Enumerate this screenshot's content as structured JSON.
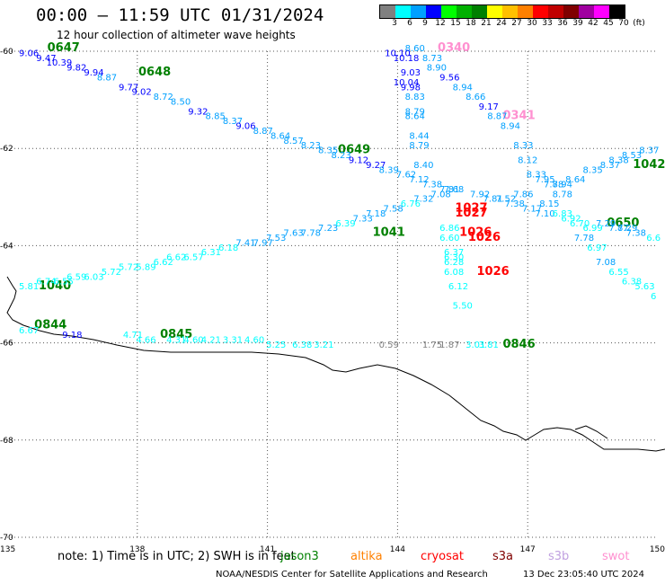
{
  "title": "00:00 – 11:59 UTC 01/31/2024",
  "subtitle": "12 hour collection of altimeter wave heights",
  "colorbar": {
    "labels": [
      "3",
      "6",
      "9",
      "12",
      "15",
      "18",
      "21",
      "24",
      "27",
      "30",
      "33",
      "36",
      "39",
      "42",
      "45",
      "70",
      "(ft)"
    ],
    "colors": [
      "#808080",
      "#00ffff",
      "#00a0ff",
      "#0000ff",
      "#00ff00",
      "#00b000",
      "#008000",
      "#ffff00",
      "#ffc000",
      "#ff8000",
      "#ff0000",
      "#c00000",
      "#800000",
      "#a000a0",
      "#ff00ff",
      "#000000"
    ]
  },
  "note": "note: 1) Time is in UTC; 2) SWH is in feet",
  "missions": [
    {
      "name": "jason3",
      "color": "#008000"
    },
    {
      "name": "altika",
      "color": "#ff8000"
    },
    {
      "name": "cryosat",
      "color": "#ff0000"
    },
    {
      "name": "s3a",
      "color": "#800000"
    },
    {
      "name": "s3b",
      "color": "#c0a0e0"
    },
    {
      "name": "swot",
      "color": "#ff90d0"
    }
  ],
  "credit": "NOAA/NESDIS Center for Satellite Applications and Research",
  "timestamp": "13 Dec 23:05:40 UTC 2024",
  "chart_data": {
    "type": "scatter",
    "xlim": [
      135,
      150
    ],
    "ylim": [
      -70,
      -60
    ],
    "x_ticks": [
      "135",
      "138",
      "141",
      "144",
      "147",
      "150"
    ],
    "y_ticks": [
      "-60",
      "-62",
      "-64",
      "-66",
      "-68",
      "-70"
    ],
    "grid": true,
    "points": [
      {
        "x": 135.5,
        "y": -60.1,
        "v": "9.06",
        "c": "#0000ff"
      },
      {
        "x": 135.9,
        "y": -60.2,
        "v": "9.47",
        "c": "#0000ff"
      },
      {
        "x": 136.2,
        "y": -60.3,
        "v": "10.39",
        "c": "#0000ff"
      },
      {
        "x": 136.6,
        "y": -60.4,
        "v": "9.82",
        "c": "#0000ff"
      },
      {
        "x": 137.0,
        "y": -60.5,
        "v": "9.94",
        "c": "#0000ff"
      },
      {
        "x": 137.3,
        "y": -60.6,
        "v": "8.87",
        "c": "#00a0ff"
      },
      {
        "x": 137.8,
        "y": -60.8,
        "v": "9.77",
        "c": "#0000ff"
      },
      {
        "x": 138.1,
        "y": -60.9,
        "v": "9.02",
        "c": "#0000ff"
      },
      {
        "x": 138.6,
        "y": -61.0,
        "v": "8.72",
        "c": "#00a0ff"
      },
      {
        "x": 139.0,
        "y": -61.1,
        "v": "8.50",
        "c": "#00a0ff"
      },
      {
        "x": 139.4,
        "y": -61.3,
        "v": "9.32",
        "c": "#0000ff"
      },
      {
        "x": 139.8,
        "y": -61.4,
        "v": "8.85",
        "c": "#00a0ff"
      },
      {
        "x": 140.2,
        "y": -61.5,
        "v": "8.37",
        "c": "#00a0ff"
      },
      {
        "x": 140.5,
        "y": -61.6,
        "v": "9.06",
        "c": "#0000ff"
      },
      {
        "x": 140.9,
        "y": -61.7,
        "v": "8.87",
        "c": "#00a0ff"
      },
      {
        "x": 141.3,
        "y": -61.8,
        "v": "8.64",
        "c": "#00a0ff"
      },
      {
        "x": 141.6,
        "y": -61.9,
        "v": "8.57",
        "c": "#00a0ff"
      },
      {
        "x": 142.0,
        "y": -62.0,
        "v": "8.23",
        "c": "#00a0ff"
      },
      {
        "x": 142.4,
        "y": -62.1,
        "v": "8.35",
        "c": "#00a0ff"
      },
      {
        "x": 142.7,
        "y": -62.2,
        "v": "8.23",
        "c": "#00a0ff"
      },
      {
        "x": 143.1,
        "y": -62.3,
        "v": "9.12",
        "c": "#0000ff"
      },
      {
        "x": 143.5,
        "y": -62.4,
        "v": "9.27",
        "c": "#0000ff"
      },
      {
        "x": 143.8,
        "y": -62.5,
        "v": "8.39",
        "c": "#00a0ff"
      },
      {
        "x": 144.2,
        "y": -62.6,
        "v": "7.62",
        "c": "#00a0ff"
      },
      {
        "x": 144.5,
        "y": -62.7,
        "v": "7.12",
        "c": "#00a0ff"
      },
      {
        "x": 144.8,
        "y": -62.8,
        "v": "7.38",
        "c": "#00a0ff"
      },
      {
        "x": 145.2,
        "y": -62.9,
        "v": "7.81",
        "c": "#00a0ff"
      },
      {
        "x": 135.5,
        "y": -64.9,
        "v": "5.81",
        "c": "#00ffff"
      },
      {
        "x": 135.9,
        "y": -64.8,
        "v": "6.74",
        "c": "#00ffff"
      },
      {
        "x": 136.3,
        "y": -64.8,
        "v": "6.55",
        "c": "#00ffff"
      },
      {
        "x": 136.6,
        "y": -64.7,
        "v": "6.59",
        "c": "#00ffff"
      },
      {
        "x": 137.0,
        "y": -64.7,
        "v": "6.03",
        "c": "#00ffff"
      },
      {
        "x": 137.4,
        "y": -64.6,
        "v": "5.72",
        "c": "#00ffff"
      },
      {
        "x": 137.8,
        "y": -64.5,
        "v": "5.72",
        "c": "#00ffff"
      },
      {
        "x": 138.2,
        "y": -64.5,
        "v": "5.89",
        "c": "#00ffff"
      },
      {
        "x": 138.6,
        "y": -64.4,
        "v": "6.62",
        "c": "#00ffff"
      },
      {
        "x": 138.9,
        "y": -64.3,
        "v": "6.62",
        "c": "#00ffff"
      },
      {
        "x": 139.3,
        "y": -64.3,
        "v": "6.57",
        "c": "#00ffff"
      },
      {
        "x": 139.7,
        "y": -64.2,
        "v": "6.31",
        "c": "#00ffff"
      },
      {
        "x": 140.1,
        "y": -64.1,
        "v": "6.18",
        "c": "#00ffff"
      },
      {
        "x": 140.5,
        "y": -64.0,
        "v": "7.41",
        "c": "#00a0ff"
      },
      {
        "x": 140.9,
        "y": -64.0,
        "v": "7.97",
        "c": "#00a0ff"
      },
      {
        "x": 141.2,
        "y": -63.9,
        "v": "7.53",
        "c": "#00a0ff"
      },
      {
        "x": 141.6,
        "y": -63.8,
        "v": "7.63",
        "c": "#00a0ff"
      },
      {
        "x": 142.0,
        "y": -63.8,
        "v": "7.78",
        "c": "#00a0ff"
      },
      {
        "x": 142.4,
        "y": -63.7,
        "v": "7.23",
        "c": "#00a0ff"
      },
      {
        "x": 142.8,
        "y": -63.6,
        "v": "6.39",
        "c": "#00ffff"
      },
      {
        "x": 143.2,
        "y": -63.5,
        "v": "7.33",
        "c": "#00a0ff"
      },
      {
        "x": 143.5,
        "y": -63.4,
        "v": "7.18",
        "c": "#00a0ff"
      },
      {
        "x": 143.9,
        "y": -63.3,
        "v": "7.58",
        "c": "#00a0ff"
      },
      {
        "x": 144.3,
        "y": -63.2,
        "v": "6.76",
        "c": "#00ffff"
      },
      {
        "x": 144.6,
        "y": -63.1,
        "v": "7.32",
        "c": "#00a0ff"
      },
      {
        "x": 145.0,
        "y": -63.0,
        "v": "7.08",
        "c": "#00a0ff"
      },
      {
        "x": 145.3,
        "y": -62.9,
        "v": "7.68",
        "c": "#00a0ff"
      },
      {
        "x": 135.5,
        "y": -65.8,
        "v": "6.67",
        "c": "#00ffff"
      },
      {
        "x": 136.5,
        "y": -65.9,
        "v": "9.18",
        "c": "#0000ff"
      },
      {
        "x": 137.9,
        "y": -65.9,
        "v": "4.71",
        "c": "#00ffff"
      },
      {
        "x": 138.2,
        "y": -66.0,
        "v": "4.66",
        "c": "#00ffff"
      },
      {
        "x": 138.9,
        "y": -66.0,
        "v": "4.31",
        "c": "#00ffff"
      },
      {
        "x": 139.3,
        "y": -66.0,
        "v": "4.60",
        "c": "#00ffff"
      },
      {
        "x": 139.7,
        "y": -66.0,
        "v": "4.21",
        "c": "#00ffff"
      },
      {
        "x": 140.2,
        "y": -66.0,
        "v": "3.31",
        "c": "#00ffff"
      },
      {
        "x": 140.7,
        "y": -66.0,
        "v": "4.60",
        "c": "#00ffff"
      },
      {
        "x": 141.2,
        "y": -66.1,
        "v": "5.25",
        "c": "#00ffff"
      },
      {
        "x": 141.8,
        "y": -66.1,
        "v": "6.38",
        "c": "#00ffff"
      },
      {
        "x": 142.3,
        "y": -66.1,
        "v": "3.21",
        "c": "#00ffff"
      },
      {
        "x": 143.8,
        "y": -66.1,
        "v": "0.59",
        "c": "#808080"
      },
      {
        "x": 144.8,
        "y": -66.1,
        "v": "1.75",
        "c": "#808080"
      },
      {
        "x": 145.2,
        "y": -66.1,
        "v": "1.87",
        "c": "#808080"
      },
      {
        "x": 145.8,
        "y": -66.1,
        "v": "3.01",
        "c": "#00ffff"
      },
      {
        "x": 146.1,
        "y": -66.1,
        "v": "3.81",
        "c": "#00ffff"
      },
      {
        "x": 144.4,
        "y": -60.0,
        "v": "8.60",
        "c": "#00a0ff"
      },
      {
        "x": 144.0,
        "y": -60.1,
        "v": "10.10",
        "c": "#0000ff"
      },
      {
        "x": 144.2,
        "y": -60.2,
        "v": "10.18",
        "c": "#0000ff"
      },
      {
        "x": 144.8,
        "y": -60.2,
        "v": "8.73",
        "c": "#00a0ff"
      },
      {
        "x": 144.9,
        "y": -60.4,
        "v": "8.90",
        "c": "#00a0ff"
      },
      {
        "x": 144.3,
        "y": -60.5,
        "v": "9.03",
        "c": "#0000ff"
      },
      {
        "x": 145.2,
        "y": -60.6,
        "v": "9.56",
        "c": "#0000ff"
      },
      {
        "x": 144.2,
        "y": -60.7,
        "v": "10.04",
        "c": "#0000ff"
      },
      {
        "x": 144.3,
        "y": -60.8,
        "v": "9.98",
        "c": "#0000ff"
      },
      {
        "x": 145.5,
        "y": -60.8,
        "v": "8.94",
        "c": "#00a0ff"
      },
      {
        "x": 144.4,
        "y": -61.0,
        "v": "8.83",
        "c": "#00a0ff"
      },
      {
        "x": 145.8,
        "y": -61.0,
        "v": "8.66",
        "c": "#00a0ff"
      },
      {
        "x": 146.1,
        "y": -61.2,
        "v": "9.17",
        "c": "#0000ff"
      },
      {
        "x": 144.4,
        "y": -61.3,
        "v": "8.79",
        "c": "#00a0ff"
      },
      {
        "x": 144.4,
        "y": -61.4,
        "v": "8.64",
        "c": "#00a0ff"
      },
      {
        "x": 146.3,
        "y": -61.4,
        "v": "8.87",
        "c": "#00a0ff"
      },
      {
        "x": 146.6,
        "y": -61.6,
        "v": "8.94",
        "c": "#00a0ff"
      },
      {
        "x": 144.5,
        "y": -61.8,
        "v": "8.44",
        "c": "#00a0ff"
      },
      {
        "x": 144.5,
        "y": -62.0,
        "v": "8.79",
        "c": "#00a0ff"
      },
      {
        "x": 146.9,
        "y": -62.0,
        "v": "8.33",
        "c": "#00a0ff"
      },
      {
        "x": 147.0,
        "y": -62.3,
        "v": "8.12",
        "c": "#00a0ff"
      },
      {
        "x": 144.6,
        "y": -62.4,
        "v": "8.40",
        "c": "#00a0ff"
      },
      {
        "x": 147.2,
        "y": -62.6,
        "v": "8.33",
        "c": "#00a0ff"
      },
      {
        "x": 147.4,
        "y": -62.7,
        "v": "7.95",
        "c": "#00a0ff"
      },
      {
        "x": 147.6,
        "y": -62.8,
        "v": "7.88",
        "c": "#00a0ff"
      },
      {
        "x": 147.8,
        "y": -62.8,
        "v": "7.94",
        "c": "#00a0ff"
      },
      {
        "x": 148.1,
        "y": -62.7,
        "v": "8.64",
        "c": "#00a0ff"
      },
      {
        "x": 148.5,
        "y": -62.5,
        "v": "8.35",
        "c": "#00a0ff"
      },
      {
        "x": 148.9,
        "y": -62.4,
        "v": "8.37",
        "c": "#00a0ff"
      },
      {
        "x": 149.1,
        "y": -62.3,
        "v": "8.38",
        "c": "#00a0ff"
      },
      {
        "x": 149.4,
        "y": -62.2,
        "v": "8.53",
        "c": "#00a0ff"
      },
      {
        "x": 149.8,
        "y": -62.1,
        "v": "8.37",
        "c": "#00a0ff"
      },
      {
        "x": 145.9,
        "y": -63.0,
        "v": "7.92",
        "c": "#00a0ff"
      },
      {
        "x": 146.2,
        "y": -63.1,
        "v": "7.81",
        "c": "#00a0ff"
      },
      {
        "x": 146.5,
        "y": -63.1,
        "v": "7.52",
        "c": "#00a0ff"
      },
      {
        "x": 146.7,
        "y": -63.2,
        "v": "7.38",
        "c": "#00a0ff"
      },
      {
        "x": 146.9,
        "y": -63.0,
        "v": "7.86",
        "c": "#00a0ff"
      },
      {
        "x": 147.1,
        "y": -63.3,
        "v": "7.17",
        "c": "#00a0ff"
      },
      {
        "x": 147.4,
        "y": -63.4,
        "v": "7.10",
        "c": "#00a0ff"
      },
      {
        "x": 147.5,
        "y": -63.2,
        "v": "8.15",
        "c": "#00a0ff"
      },
      {
        "x": 147.8,
        "y": -63.0,
        "v": "8.78",
        "c": "#00a0ff"
      },
      {
        "x": 147.8,
        "y": -63.4,
        "v": "6.83",
        "c": "#00ffff"
      },
      {
        "x": 148.0,
        "y": -63.5,
        "v": "6.92",
        "c": "#00ffff"
      },
      {
        "x": 148.2,
        "y": -63.6,
        "v": "6.70",
        "c": "#00ffff"
      },
      {
        "x": 148.5,
        "y": -63.7,
        "v": "6.99",
        "c": "#00ffff"
      },
      {
        "x": 148.8,
        "y": -63.6,
        "v": "7.29",
        "c": "#00a0ff"
      },
      {
        "x": 149.1,
        "y": -63.7,
        "v": "7.87",
        "c": "#00a0ff"
      },
      {
        "x": 149.3,
        "y": -63.7,
        "v": "7.29",
        "c": "#00a0ff"
      },
      {
        "x": 148.3,
        "y": -63.9,
        "v": "7.78",
        "c": "#00a0ff"
      },
      {
        "x": 149.5,
        "y": -63.8,
        "v": "7.38",
        "c": "#00a0ff"
      },
      {
        "x": 149.9,
        "y": -63.9,
        "v": "6.6",
        "c": "#00ffff"
      },
      {
        "x": 148.6,
        "y": -64.1,
        "v": "6.97",
        "c": "#00ffff"
      },
      {
        "x": 148.8,
        "y": -64.4,
        "v": "7.08",
        "c": "#00a0ff"
      },
      {
        "x": 149.1,
        "y": -64.6,
        "v": "6.55",
        "c": "#00ffff"
      },
      {
        "x": 149.4,
        "y": -64.8,
        "v": "6.38",
        "c": "#00ffff"
      },
      {
        "x": 149.7,
        "y": -64.9,
        "v": "5.63",
        "c": "#00ffff"
      },
      {
        "x": 149.9,
        "y": -65.1,
        "v": "6",
        "c": "#00ffff"
      },
      {
        "x": 145.2,
        "y": -63.7,
        "v": "6.86",
        "c": "#00ffff"
      },
      {
        "x": 145.2,
        "y": -63.9,
        "v": "6.60",
        "c": "#00ffff"
      },
      {
        "x": 145.3,
        "y": -64.2,
        "v": "6.37",
        "c": "#00ffff"
      },
      {
        "x": 145.3,
        "y": -64.3,
        "v": "6.30",
        "c": "#00ffff"
      },
      {
        "x": 145.3,
        "y": -64.4,
        "v": "6.28",
        "c": "#00ffff"
      },
      {
        "x": 145.3,
        "y": -64.6,
        "v": "6.08",
        "c": "#00ffff"
      },
      {
        "x": 145.4,
        "y": -64.9,
        "v": "6.12",
        "c": "#00ffff"
      },
      {
        "x": 145.5,
        "y": -65.3,
        "v": "5.50",
        "c": "#00ffff"
      }
    ],
    "pass_labels": [
      {
        "x": 136.3,
        "y": -60.0,
        "t": "0647",
        "c": "#008000"
      },
      {
        "x": 138.4,
        "y": -60.5,
        "t": "0648",
        "c": "#008000"
      },
      {
        "x": 143.0,
        "y": -62.1,
        "t": "0649",
        "c": "#008000"
      },
      {
        "x": 149.8,
        "y": -62.4,
        "t": "1042",
        "c": "#008000"
      },
      {
        "x": 143.8,
        "y": -63.8,
        "t": "1041",
        "c": "#008000"
      },
      {
        "x": 136.1,
        "y": -64.9,
        "t": "1040",
        "c": "#008000"
      },
      {
        "x": 149.2,
        "y": -63.6,
        "t": "0650",
        "c": "#008000"
      },
      {
        "x": 136.0,
        "y": -65.7,
        "t": "0844",
        "c": "#008000"
      },
      {
        "x": 138.9,
        "y": -65.9,
        "t": "0845",
        "c": "#008000"
      },
      {
        "x": 146.8,
        "y": -66.1,
        "t": "0846",
        "c": "#008000"
      },
      {
        "x": 145.3,
        "y": -60.0,
        "t": "0340",
        "c": "#ff90d0"
      },
      {
        "x": 146.8,
        "y": -61.4,
        "t": "0341",
        "c": "#ff90d0"
      },
      {
        "x": 145.7,
        "y": -63.3,
        "t": "1027",
        "c": "#ff0000"
      },
      {
        "x": 145.7,
        "y": -63.4,
        "t": "1027",
        "c": "#ff0000"
      },
      {
        "x": 145.8,
        "y": -63.8,
        "t": "1026",
        "c": "#ff0000"
      },
      {
        "x": 146.0,
        "y": -63.9,
        "t": "1026",
        "c": "#ff0000"
      },
      {
        "x": 146.2,
        "y": -64.6,
        "t": "1026",
        "c": "#ff0000"
      }
    ]
  }
}
